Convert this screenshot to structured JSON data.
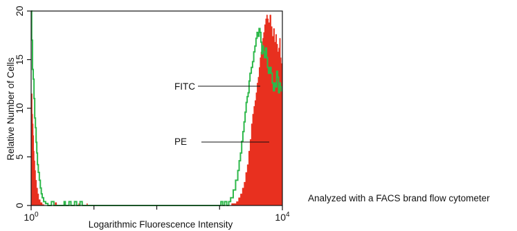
{
  "chart_data": {
    "type": "histogram",
    "xlabel": "Logarithmic Fluorescence Intensity",
    "ylabel": "Relative Number of Cells",
    "x_scale": "log",
    "xlim": [
      1,
      10000
    ],
    "ylim": [
      0,
      20
    ],
    "x_tick_base": "10",
    "x_ticks": [
      {
        "exp": "0",
        "value": 1
      },
      {
        "exp": "4",
        "value": 10000
      }
    ],
    "x_minor_ticks": [
      10,
      100,
      1000
    ],
    "y_ticks": [
      {
        "label": "0",
        "value": 0
      },
      {
        "label": "5",
        "value": 5
      },
      {
        "label": "10",
        "value": 10
      },
      {
        "label": "15",
        "value": 15
      },
      {
        "label": "20",
        "value": 20
      }
    ],
    "grid": false,
    "legend": "none",
    "annotations": [
      {
        "text": "FITC",
        "series": "FITC"
      },
      {
        "text": "PE",
        "series": "PE"
      }
    ],
    "series": [
      {
        "name": "FITC",
        "style": "step-line",
        "color": "#2db84a",
        "points": [
          [
            1.0,
            20
          ],
          [
            1.02,
            17
          ],
          [
            1.05,
            14
          ],
          [
            1.08,
            13
          ],
          [
            1.11,
            11
          ],
          [
            1.14,
            9
          ],
          [
            1.17,
            8
          ],
          [
            1.2,
            6.5
          ],
          [
            1.23,
            5.4
          ],
          [
            1.26,
            4.2
          ],
          [
            1.3,
            3.4
          ],
          [
            1.35,
            2.6
          ],
          [
            1.4,
            1.8
          ],
          [
            1.45,
            1.2
          ],
          [
            1.5,
            0.8
          ],
          [
            1.58,
            0.4
          ],
          [
            1.7,
            0.2
          ],
          [
            1.85,
            0
          ],
          [
            2.1,
            0.4
          ],
          [
            2.3,
            0
          ],
          [
            3.2,
            0
          ],
          [
            3.35,
            0.4
          ],
          [
            3.5,
            0
          ],
          [
            4.0,
            0.4
          ],
          [
            4.3,
            0
          ],
          [
            4.9,
            0.4
          ],
          [
            5.3,
            0
          ],
          [
            6.0,
            0.4
          ],
          [
            6.5,
            0
          ],
          [
            10,
            0
          ],
          [
            1000,
            0
          ],
          [
            1050,
            0.4
          ],
          [
            1120,
            0
          ],
          [
            1200,
            0.4
          ],
          [
            1300,
            0
          ],
          [
            1400,
            0.4
          ],
          [
            1500,
            0.8
          ],
          [
            1650,
            1.6
          ],
          [
            1800,
            2.6
          ],
          [
            1950,
            3.6
          ],
          [
            2050,
            4.6
          ],
          [
            2150,
            5.4
          ],
          [
            2250,
            6.6
          ],
          [
            2350,
            7.6
          ],
          [
            2450,
            8.6
          ],
          [
            2550,
            9.6
          ],
          [
            2650,
            10.6
          ],
          [
            2750,
            11.2
          ],
          [
            2850,
            11.6
          ],
          [
            2950,
            12.8
          ],
          [
            3050,
            13.6
          ],
          [
            3200,
            14.2
          ],
          [
            3350,
            14.8
          ],
          [
            3500,
            15.8
          ],
          [
            3650,
            16.4
          ],
          [
            3800,
            17.2
          ],
          [
            3950,
            17.8
          ],
          [
            4100,
            17.4
          ],
          [
            4250,
            18.2
          ],
          [
            4400,
            17.8
          ],
          [
            4550,
            16.8
          ],
          [
            4700,
            15.6
          ],
          [
            4850,
            16.4
          ],
          [
            5000,
            15.8
          ],
          [
            5200,
            15.2
          ],
          [
            5400,
            16.2
          ],
          [
            5600,
            15.2
          ],
          [
            5800,
            14.2
          ],
          [
            6000,
            13.6
          ],
          [
            6300,
            14.2
          ],
          [
            6600,
            13.6
          ],
          [
            6900,
            12.6
          ],
          [
            7200,
            11.8
          ],
          [
            7500,
            12.6
          ],
          [
            7800,
            12.2
          ],
          [
            8100,
            13.8
          ],
          [
            8400,
            13.2
          ],
          [
            8700,
            11.6
          ],
          [
            9000,
            12.6
          ],
          [
            9300,
            12.2
          ],
          [
            9600,
            11.8
          ],
          [
            10000,
            11.8
          ]
        ]
      },
      {
        "name": "PE",
        "style": "filled-histogram",
        "color": "#e8301f",
        "points": [
          [
            1.0,
            10.4
          ],
          [
            1.02,
            11.5
          ],
          [
            1.04,
            9.4
          ],
          [
            1.06,
            8.4
          ],
          [
            1.08,
            7.2
          ],
          [
            1.1,
            5.6
          ],
          [
            1.12,
            4.6
          ],
          [
            1.15,
            3.6
          ],
          [
            1.18,
            2.6
          ],
          [
            1.22,
            1.8
          ],
          [
            1.27,
            1.2
          ],
          [
            1.32,
            0.6
          ],
          [
            1.4,
            0.3
          ],
          [
            1.5,
            0.1
          ],
          [
            1.6,
            0
          ],
          [
            2.3,
            0
          ],
          [
            2.4,
            0.3
          ],
          [
            2.55,
            0
          ],
          [
            5.5,
            0
          ],
          [
            5.7,
            0.2
          ],
          [
            5.9,
            0
          ],
          [
            7.5,
            0
          ],
          [
            7.7,
            0.2
          ],
          [
            7.9,
            0
          ],
          [
            1000,
            0
          ],
          [
            1400,
            0
          ],
          [
            1550,
            0.2
          ],
          [
            1700,
            0.2
          ],
          [
            1850,
            0.4
          ],
          [
            2000,
            0.8
          ],
          [
            2150,
            1.2
          ],
          [
            2300,
            1.8
          ],
          [
            2450,
            2.4
          ],
          [
            2600,
            3.4
          ],
          [
            2750,
            4.2
          ],
          [
            2900,
            5.6
          ],
          [
            3050,
            6.8
          ],
          [
            3200,
            8.4
          ],
          [
            3350,
            9.4
          ],
          [
            3500,
            10.2
          ],
          [
            3650,
            10.8
          ],
          [
            3800,
            11.6
          ],
          [
            3950,
            12.6
          ],
          [
            4100,
            13.2
          ],
          [
            4250,
            14.2
          ],
          [
            4400,
            15.2
          ],
          [
            4550,
            15.8
          ],
          [
            4700,
            16.4
          ],
          [
            4850,
            17.2
          ],
          [
            5000,
            17.8
          ],
          [
            5200,
            18.6
          ],
          [
            5400,
            19.2
          ],
          [
            5600,
            19.6
          ],
          [
            5800,
            19.2
          ],
          [
            6000,
            18.8
          ],
          [
            6300,
            19.6
          ],
          [
            6600,
            18.4
          ],
          [
            6900,
            17.4
          ],
          [
            7200,
            18.2
          ],
          [
            7500,
            16.8
          ],
          [
            7800,
            17.6
          ],
          [
            8100,
            16.6
          ],
          [
            8400,
            15.8
          ],
          [
            8700,
            16.2
          ],
          [
            9000,
            17.2
          ],
          [
            9300,
            15.2
          ],
          [
            9600,
            14.6
          ],
          [
            10000,
            15.6
          ]
        ]
      }
    ]
  },
  "side_note": "Analyzed with a FACS brand flow cytometer"
}
